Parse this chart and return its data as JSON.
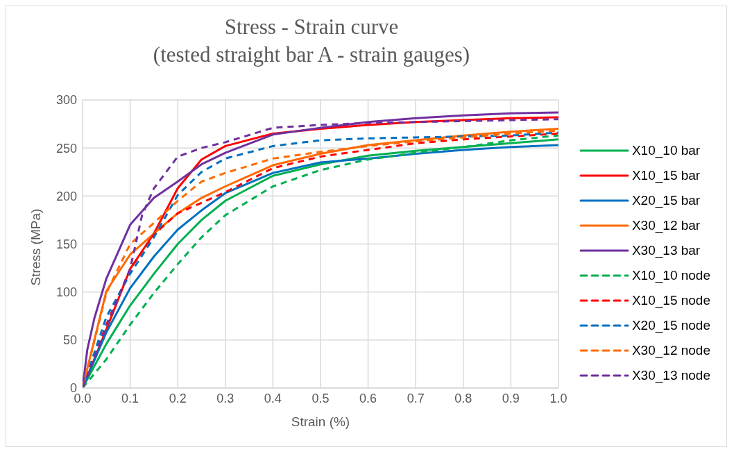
{
  "chart_data": {
    "type": "line",
    "title": "Stress - Strain curve",
    "subtitle": "(tested straight bar A - strain gauges)",
    "xlabel": "Strain (%)",
    "ylabel": "Stress (MPa)",
    "xlim": [
      0,
      1
    ],
    "xticks": [
      {
        "value": 0,
        "label": "0.0"
      },
      {
        "value": 0.1,
        "label": "0.1"
      },
      {
        "value": 0.2,
        "label": "0.2"
      },
      {
        "value": 0.3,
        "label": "0.3"
      },
      {
        "value": 0.4,
        "label": "0.4"
      },
      {
        "value": 0.5,
        "label": "0.5"
      },
      {
        "value": 0.6,
        "label": "0.6"
      },
      {
        "value": 0.7,
        "label": "0.7"
      },
      {
        "value": 0.8,
        "label": "0.8"
      },
      {
        "value": 0.9,
        "label": "0.9"
      },
      {
        "value": 1,
        "label": "1.0"
      }
    ],
    "ylim": [
      0,
      300
    ],
    "yticks": [
      0,
      50,
      100,
      150,
      200,
      250,
      300
    ],
    "grid": true,
    "legend": "right",
    "marker": "none",
    "series": [
      {
        "name": "X10_10 bar",
        "color": "#00b050",
        "line_style": "solid",
        "x": [
          0,
          0.05,
          0.1,
          0.15,
          0.2,
          0.25,
          0.3,
          0.4,
          0.5,
          0.6,
          0.7,
          0.8,
          0.9,
          1
        ],
        "values": [
          0,
          46,
          86,
          119,
          150,
          175,
          195,
          221,
          233,
          242,
          247,
          251,
          255,
          259
        ]
      },
      {
        "name": "X10_15 bar",
        "color": "#ff0000",
        "line_style": "solid",
        "x": [
          0,
          0.05,
          0.1,
          0.15,
          0.2,
          0.25,
          0.3,
          0.4,
          0.5,
          0.6,
          0.7,
          0.8,
          0.9,
          1
        ],
        "values": [
          0,
          61,
          124,
          161,
          208,
          238,
          252,
          265,
          270,
          274,
          277,
          279,
          281,
          282
        ]
      },
      {
        "name": "X20_15 bar",
        "color": "#0070c0",
        "line_style": "solid",
        "x": [
          0,
          0.05,
          0.1,
          0.15,
          0.2,
          0.25,
          0.3,
          0.4,
          0.5,
          0.6,
          0.7,
          0.8,
          0.9,
          1
        ],
        "values": [
          0,
          58,
          104,
          137,
          165,
          185,
          203,
          224,
          235,
          239,
          244,
          248,
          251,
          253
        ]
      },
      {
        "name": "X30_12 bar",
        "color": "#ff6a00",
        "line_style": "solid",
        "x": [
          0,
          0.05,
          0.1,
          0.15,
          0.2,
          0.25,
          0.3,
          0.4,
          0.5,
          0.6,
          0.7,
          0.8,
          0.9,
          1
        ],
        "values": [
          0,
          101,
          139,
          161,
          182,
          198,
          210,
          232,
          244,
          253,
          258,
          263,
          267,
          270
        ]
      },
      {
        "name": "X30_13 bar",
        "color": "#7030a0",
        "line_style": "solid",
        "x": [
          0,
          0.01,
          0.025,
          0.05,
          0.1,
          0.15,
          0.2,
          0.25,
          0.3,
          0.4,
          0.5,
          0.6,
          0.7,
          0.8,
          0.9,
          1
        ],
        "values": [
          0,
          40,
          73,
          114,
          170,
          198,
          215,
          233,
          245,
          264,
          271,
          277,
          281,
          284,
          286,
          287
        ]
      },
      {
        "name": "X10_10 node",
        "color": "#00b050",
        "line_style": "dashed",
        "x": [
          0,
          0.05,
          0.1,
          0.15,
          0.2,
          0.25,
          0.3,
          0.4,
          0.5,
          0.6,
          0.7,
          0.8,
          0.9,
          1
        ],
        "values": [
          0,
          30,
          66,
          99,
          129,
          157,
          180,
          210,
          227,
          238,
          245,
          251,
          258,
          263
        ]
      },
      {
        "name": "X10_15 node",
        "color": "#ff0000",
        "line_style": "dashed",
        "x": [
          0,
          0.05,
          0.1,
          0.15,
          0.2,
          0.25,
          0.3,
          0.4,
          0.5,
          0.6,
          0.7,
          0.8,
          0.9,
          1
        ],
        "values": [
          0,
          66,
          124,
          160,
          182,
          193,
          204,
          229,
          241,
          248,
          255,
          259,
          262,
          265
        ]
      },
      {
        "name": "X20_15 node",
        "color": "#0070c0",
        "line_style": "dashed",
        "x": [
          0,
          0.05,
          0.1,
          0.15,
          0.2,
          0.25,
          0.3,
          0.4,
          0.5,
          0.6,
          0.7,
          0.8,
          0.9,
          1
        ],
        "values": [
          0,
          74,
          119,
          157,
          201,
          225,
          239,
          252,
          258,
          260,
          261,
          262,
          263,
          266
        ]
      },
      {
        "name": "X30_12 node",
        "color": "#ff6a00",
        "line_style": "dashed",
        "x": [
          0,
          0.05,
          0.1,
          0.15,
          0.2,
          0.25,
          0.3,
          0.4,
          0.5,
          0.6,
          0.7,
          0.8,
          0.9,
          1
        ],
        "values": [
          0,
          99,
          150,
          172,
          195,
          215,
          224,
          239,
          246,
          252,
          257,
          261,
          265,
          268
        ]
      },
      {
        "name": "X30_13 node",
        "color": "#7030a0",
        "line_style": "dashed",
        "x": [
          0,
          0.05,
          0.1,
          0.125,
          0.15,
          0.2,
          0.25,
          0.3,
          0.4,
          0.5,
          0.6,
          0.7,
          0.8,
          0.9,
          1
        ],
        "values": [
          0,
          64,
          124,
          180,
          208,
          241,
          250,
          256,
          271,
          274,
          276,
          277,
          278,
          279,
          280
        ]
      }
    ]
  }
}
